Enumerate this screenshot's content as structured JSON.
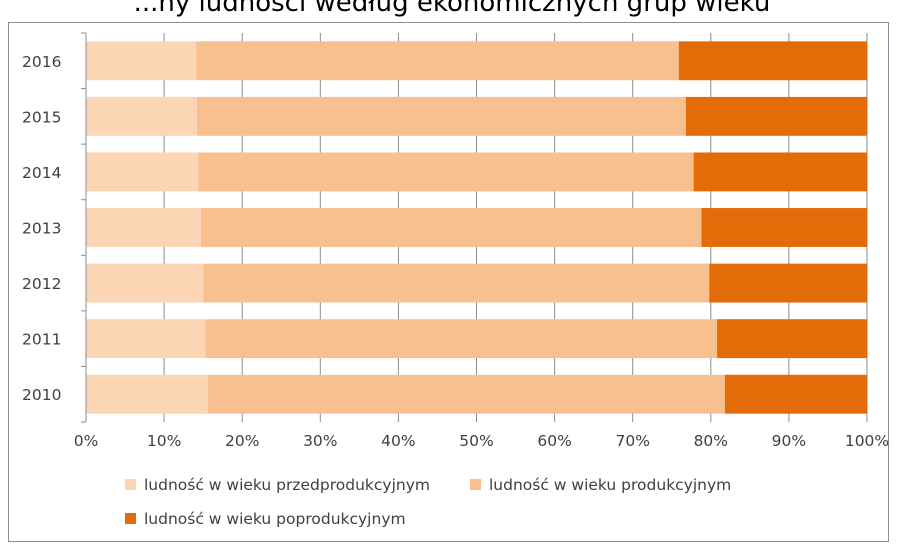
{
  "title_fragment": "...ny ludności według ekonomicznych grup wieku",
  "chart_data": {
    "type": "bar",
    "orientation": "horizontal",
    "stacked": "percent",
    "categories": [
      "2016",
      "2015",
      "2014",
      "2013",
      "2012",
      "2011",
      "2010"
    ],
    "series": [
      {
        "name": "ludność w wieku przedprodukcyjnym",
        "color": "#fcd5b5",
        "values": [
          14.1,
          14.2,
          14.4,
          14.7,
          15.0,
          15.3,
          15.6
        ]
      },
      {
        "name": "ludność w wieku produkcyjnym",
        "color": "#f8bf8f",
        "values": [
          61.8,
          62.6,
          63.4,
          64.1,
          64.8,
          65.5,
          66.2
        ]
      },
      {
        "name": "ludność w wieku poprodukcyjnym",
        "color": "#e36c09",
        "values": [
          24.1,
          23.2,
          22.2,
          21.2,
          20.2,
          19.2,
          18.2
        ]
      }
    ],
    "xlim": [
      0,
      100
    ],
    "xticks": [
      "0%",
      "10%",
      "20%",
      "30%",
      "40%",
      "50%",
      "60%",
      "70%",
      "80%",
      "90%",
      "100%"
    ],
    "grid": true,
    "legend_position": "bottom"
  }
}
